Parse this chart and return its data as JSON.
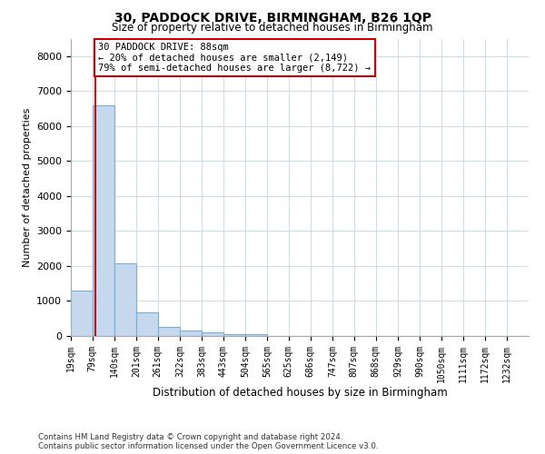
{
  "title_line1": "30, PADDOCK DRIVE, BIRMINGHAM, B26 1QP",
  "title_line2": "Size of property relative to detached houses in Birmingham",
  "xlabel": "Distribution of detached houses by size in Birmingham",
  "ylabel": "Number of detached properties",
  "footer_line1": "Contains HM Land Registry data © Crown copyright and database right 2024.",
  "footer_line2": "Contains public sector information licensed under the Open Government Licence v3.0.",
  "annotation_line1": "30 PADDOCK DRIVE: 88sqm",
  "annotation_line2": "← 20% of detached houses are smaller (2,149)",
  "annotation_line3": "79% of semi-detached houses are larger (8,722) →",
  "vline_x": 88,
  "bar_color": "#c5d8ee",
  "bar_edge_color": "#7aafd4",
  "vline_color": "#cc0000",
  "annotation_box_edgecolor": "#cc0000",
  "annotation_box_facecolor": "#ffffff",
  "grid_color": "#d0dce8",
  "background_color": "#ffffff",
  "bins_left_edges": [
    19,
    79,
    140,
    201,
    261,
    322,
    383,
    443,
    504,
    565,
    625,
    686,
    747,
    807,
    868,
    929,
    990,
    1050,
    1111,
    1172,
    1232
  ],
  "bin_width": 61,
  "bar_heights": [
    1300,
    6600,
    2080,
    680,
    270,
    150,
    100,
    60,
    60,
    0,
    0,
    0,
    0,
    0,
    0,
    0,
    0,
    0,
    0,
    0,
    0
  ],
  "ylim": [
    0,
    8500
  ],
  "yticks": [
    0,
    1000,
    2000,
    3000,
    4000,
    5000,
    6000,
    7000,
    8000
  ],
  "xlim_left": 19,
  "xlim_right": 1293,
  "tick_labels": [
    "19sqm",
    "79sqm",
    "140sqm",
    "201sqm",
    "261sqm",
    "322sqm",
    "383sqm",
    "443sqm",
    "504sqm",
    "565sqm",
    "625sqm",
    "686sqm",
    "747sqm",
    "807sqm",
    "868sqm",
    "929sqm",
    "990sqm",
    "1050sqm",
    "1111sqm",
    "1172sqm",
    "1232sqm"
  ],
  "title1_fontsize": 10,
  "title2_fontsize": 8.5,
  "ylabel_fontsize": 8,
  "xlabel_fontsize": 8.5,
  "ytick_fontsize": 8,
  "xtick_fontsize": 7
}
